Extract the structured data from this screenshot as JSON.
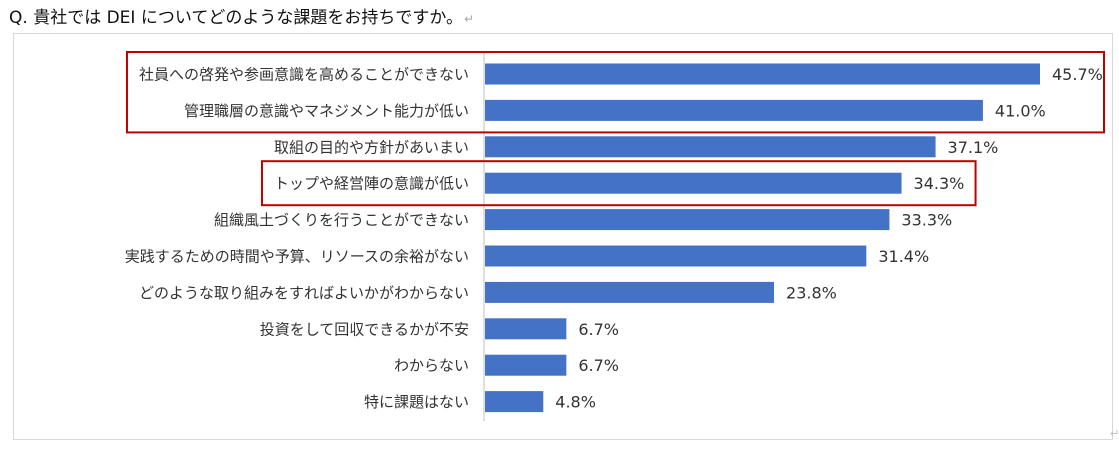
{
  "header": {
    "question": "Q. 貴社では DEI についてどのような課題をお持ちですか。",
    "paragraph_mark": "↵"
  },
  "footer": {
    "paragraph_mark": "↵"
  },
  "colors": {
    "bar": "#4472c4",
    "highlight_box": "#c00000",
    "axis": "#bfbfbf"
  },
  "chart_data": {
    "type": "bar",
    "orientation": "horizontal",
    "categories": [
      "社員への啓発や参画意識を高めることができない",
      "管理職層の意識やマネジメント能力が低い",
      "取組の目的や方針があいまい",
      "トップや経営陣の意識が低い",
      "組織風土づくりを行うことができない",
      "実践するための時間や予算、リソースの余裕がない",
      "どのような取り組みをすればよいかがわからない",
      "投資をして回収できるかが不安",
      "わからない",
      "特に課題はない"
    ],
    "values": [
      45.7,
      41.0,
      37.1,
      34.3,
      33.3,
      31.4,
      23.8,
      6.7,
      6.7,
      4.8
    ],
    "value_labels": [
      "45.7%",
      "41.0%",
      "37.1%",
      "34.3%",
      "33.3%",
      "31.4%",
      "23.8%",
      "6.7%",
      "6.7%",
      "4.8%"
    ],
    "unit": "%",
    "xlim": [
      0,
      50
    ],
    "grid": false,
    "legend": "none",
    "highlighted_groups": [
      [
        0,
        1
      ],
      [
        3
      ]
    ]
  }
}
